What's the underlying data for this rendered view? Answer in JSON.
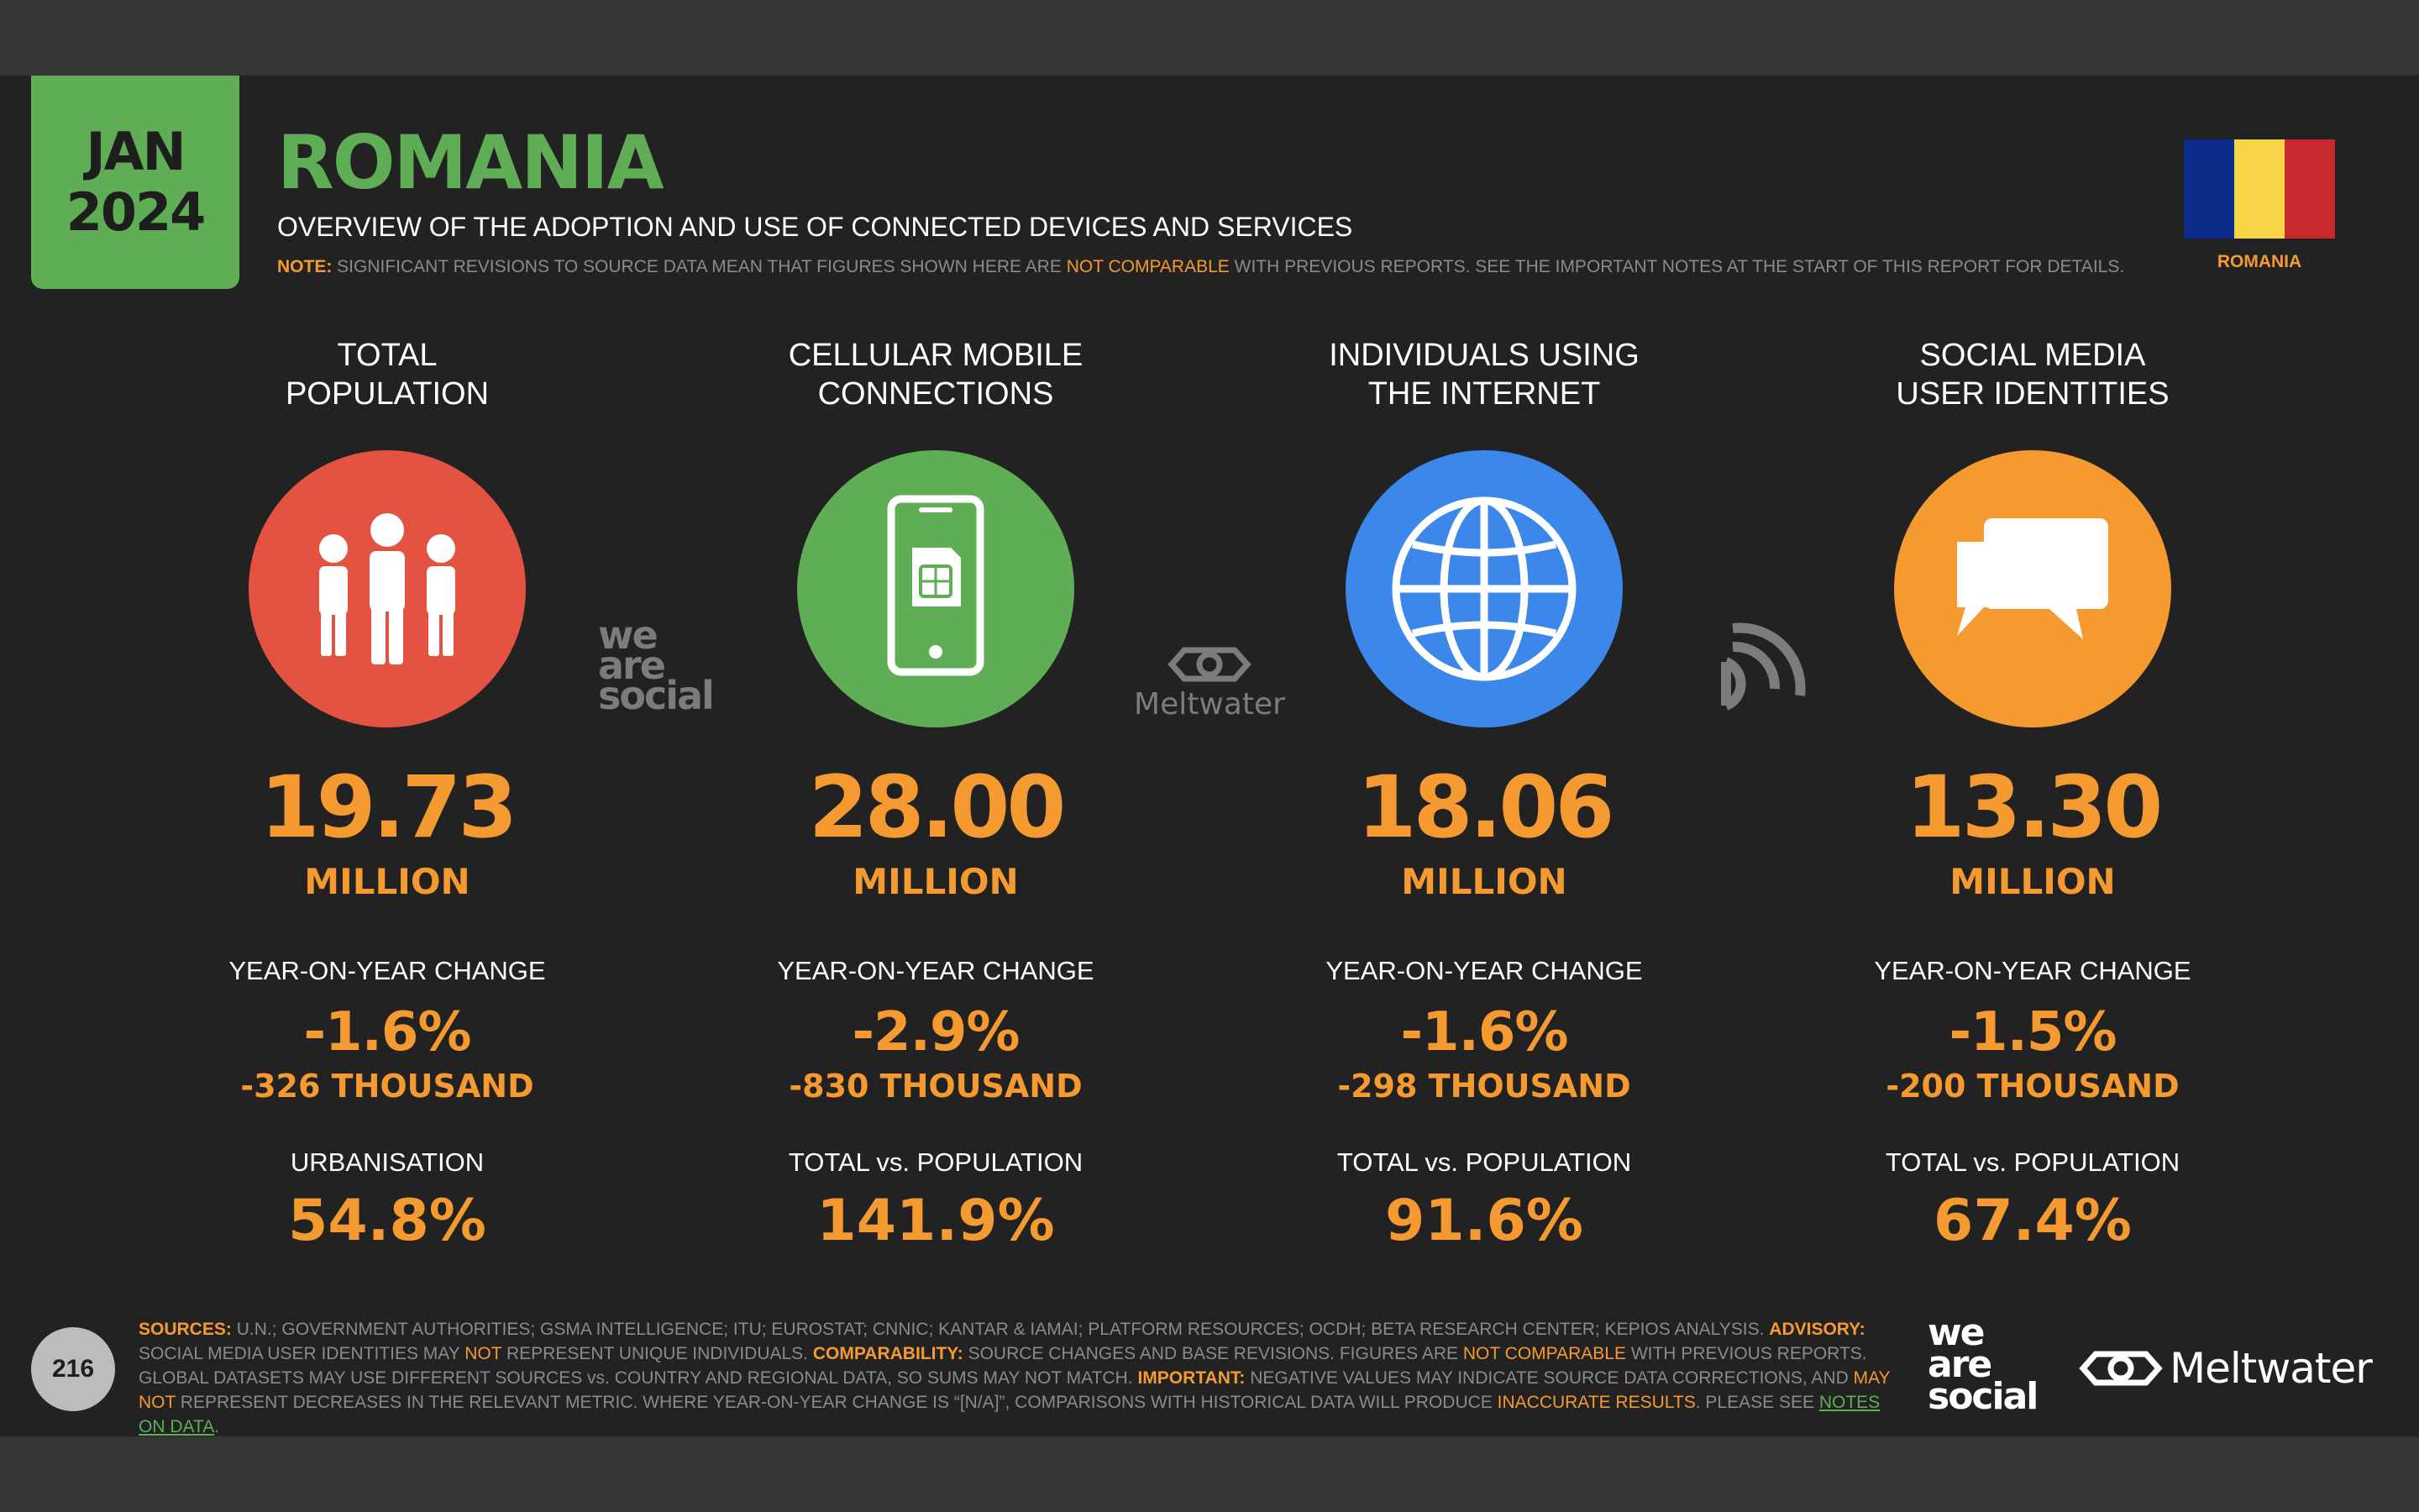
{
  "date_badge": {
    "month": "JAN",
    "year": "2024"
  },
  "header": {
    "title": "ROMANIA",
    "subtitle": "OVERVIEW OF THE ADOPTION AND USE OF CONNECTED DEVICES AND SERVICES",
    "note_label": "NOTE:",
    "note_text_1": " SIGNIFICANT REVISIONS TO SOURCE DATA MEAN THAT FIGURES SHOWN HERE ARE ",
    "note_highlight": "NOT COMPARABLE",
    "note_text_2": " WITH PREVIOUS REPORTS. SEE THE IMPORTANT NOTES AT THE START OF THIS REPORT FOR DETAILS."
  },
  "flag": {
    "label": "ROMANIA",
    "colors": [
      "#0b2a8a",
      "#f5d445",
      "#c62a2e"
    ]
  },
  "colors": {
    "accent": "#f59a30",
    "brand_green": "#5fae55",
    "red": "#e45241",
    "blue": "#3c87ea"
  },
  "stats": [
    {
      "heading": [
        "TOTAL",
        "POPULATION"
      ],
      "icon": "people-icon",
      "color": "#e45241",
      "value": "19.73",
      "unit": "MILLION",
      "change_label": "YEAR-ON-YEAR CHANGE",
      "change_pct": "-1.6%",
      "change_abs": "-326 THOUSAND",
      "extra_label": "URBANISATION",
      "extra_value": "54.8%"
    },
    {
      "heading": [
        "CELLULAR MOBILE",
        "CONNECTIONS"
      ],
      "icon": "mobile-phone-icon",
      "color": "#5fae55",
      "value": "28.00",
      "unit": "MILLION",
      "change_label": "YEAR-ON-YEAR CHANGE",
      "change_pct": "-2.9%",
      "change_abs": "-830 THOUSAND",
      "extra_label": "TOTAL vs. POPULATION",
      "extra_value": "141.9%"
    },
    {
      "heading": [
        "INDIVIDUALS USING",
        "THE INTERNET"
      ],
      "icon": "globe-icon",
      "color": "#3c87ea",
      "value": "18.06",
      "unit": "MILLION",
      "change_label": "YEAR-ON-YEAR CHANGE",
      "change_pct": "-1.6%",
      "change_abs": "-298 THOUSAND",
      "extra_label": "TOTAL vs. POPULATION",
      "extra_value": "91.6%"
    },
    {
      "heading": [
        "SOCIAL MEDIA",
        "USER IDENTITIES"
      ],
      "icon": "chat-bubbles-icon",
      "color": "#f59a30",
      "value": "13.30",
      "unit": "MILLION",
      "change_label": "YEAR-ON-YEAR CHANGE",
      "change_pct": "-1.5%",
      "change_abs": "-200 THOUSAND",
      "extra_label": "TOTAL vs. POPULATION",
      "extra_value": "67.4%"
    }
  ],
  "watermarks": {
    "we_are_social": [
      "we",
      "are",
      "social"
    ],
    "meltwater": "Meltwater"
  },
  "footer": {
    "page_number": "216",
    "sources": [
      {
        "t": "SOURCES:",
        "s": "ob"
      },
      {
        "t": " U.N.; GOVERNMENT AUTHORITIES; GSMA INTELLIGENCE; ITU; EUROSTAT; CNNIC; KANTAR & IAMAI; PLATFORM RESOURCES; OCDH; BETA RESEARCH CENTER; KEPIOS ANALYSIS. ",
        "s": ""
      },
      {
        "t": "ADVISORY:",
        "s": "ob"
      },
      {
        "t": " SOCIAL MEDIA USER IDENTITIES MAY ",
        "s": ""
      },
      {
        "t": "NOT",
        "s": "o"
      },
      {
        "t": " REPRESENT UNIQUE INDIVIDUALS. ",
        "s": ""
      },
      {
        "t": "COMPARABILITY:",
        "s": "ob"
      },
      {
        "t": " SOURCE CHANGES AND BASE REVISIONS. FIGURES ARE ",
        "s": ""
      },
      {
        "t": "NOT COMPARABLE",
        "s": "o"
      },
      {
        "t": " WITH PREVIOUS REPORTS. GLOBAL DATASETS MAY USE DIFFERENT SOURCES vs. COUNTRY AND REGIONAL DATA, SO SUMS MAY NOT MATCH. ",
        "s": ""
      },
      {
        "t": "IMPORTANT:",
        "s": "ob"
      },
      {
        "t": " NEGATIVE VALUES MAY INDICATE SOURCE DATA CORRECTIONS, AND ",
        "s": ""
      },
      {
        "t": "MAY NOT",
        "s": "o"
      },
      {
        "t": " REPRESENT DECREASES IN THE RELEVANT METRIC. WHERE YEAR-ON-YEAR CHANGE IS “[N/A]”, COMPARISONS WITH HISTORICAL DATA WILL PRODUCE ",
        "s": ""
      },
      {
        "t": "INACCURATE RESULTS",
        "s": "o"
      },
      {
        "t": ". PLEASE SEE ",
        "s": ""
      },
      {
        "t": "NOTES ON DATA",
        "s": "g"
      },
      {
        "t": ".",
        "s": ""
      }
    ],
    "logo_ws": [
      "we",
      "are",
      "social"
    ],
    "logo_mw": "Meltwater"
  }
}
